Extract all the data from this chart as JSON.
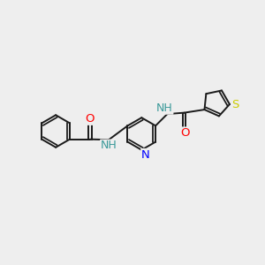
{
  "background_color": "#eeeeee",
  "bond_color": "#1a1a1a",
  "atom_colors": {
    "N": "#0000ff",
    "O": "#ff0000",
    "S": "#cccc00",
    "NH": "#3a9999"
  },
  "lw": 1.4,
  "fs": 9.5
}
